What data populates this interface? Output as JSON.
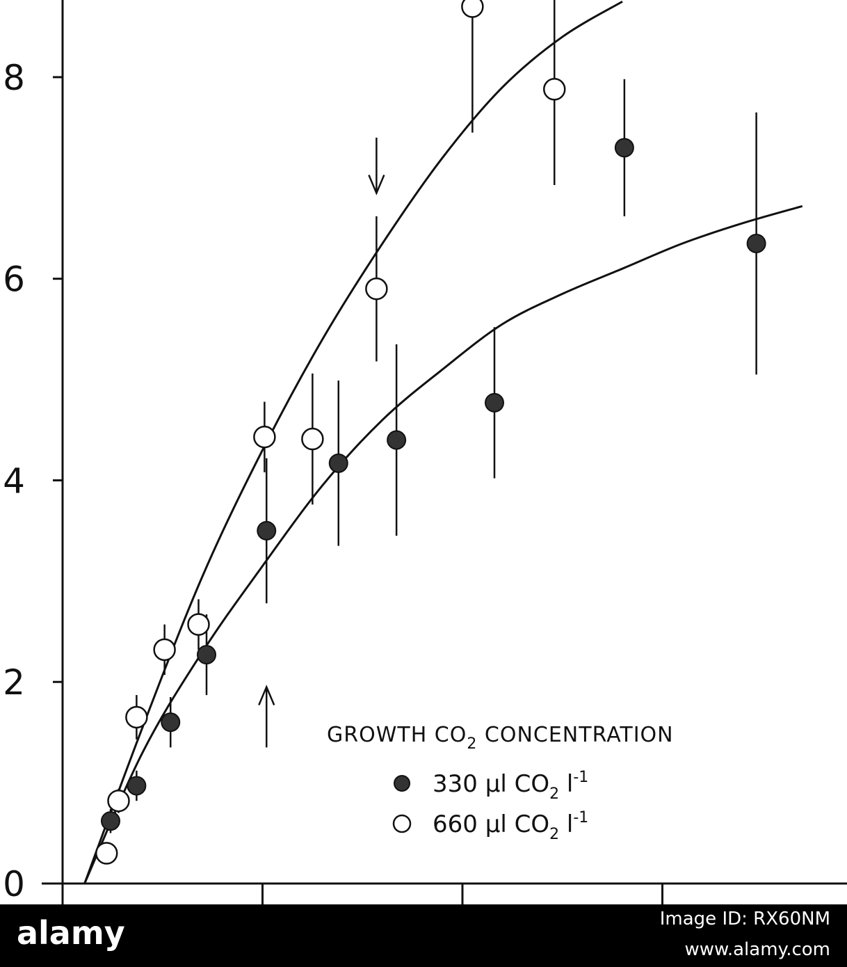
{
  "chart_data": {
    "type": "scatter",
    "title": "",
    "xlabel": "",
    "ylabel": "",
    "ylim": [
      0,
      8.8
    ],
    "xlim": [
      0,
      2000
    ],
    "y_ticks": [
      "0",
      "2",
      "4",
      "6",
      "8"
    ],
    "y_tick_values": [
      0,
      2,
      4,
      6,
      8
    ],
    "x_tick_values": [
      500,
      1000,
      1500,
      2000
    ],
    "legend": {
      "title": "GROWTH CO",
      "title_sub": "2",
      "title_rest": " CONCENTRATION",
      "placement": "lower-right",
      "entries": [
        {
          "marker": "filled",
          "text": "330 μl CO",
          "sub": "2",
          "rest": " l",
          "sup": "-1"
        },
        {
          "marker": "open",
          "text": "660 μl CO",
          "sub": "2",
          "rest": " l",
          "sup": "-1"
        }
      ]
    },
    "series": [
      {
        "marker": "filled",
        "points": [
          {
            "x": 120,
            "y": 0.62,
            "err": 0.12
          },
          {
            "x": 185,
            "y": 0.97,
            "err": 0.15
          },
          {
            "x": 270,
            "y": 1.6,
            "err": 0.25
          },
          {
            "x": 360,
            "y": 2.27,
            "err": 0.4
          },
          {
            "x": 510,
            "y": 3.5,
            "err": 0.72
          },
          {
            "x": 690,
            "y": 4.17,
            "err": 0.82
          },
          {
            "x": 835,
            "y": 4.4,
            "err": 0.95
          },
          {
            "x": 1080,
            "y": 4.77,
            "err": 0.75
          },
          {
            "x": 1405,
            "y": 7.3,
            "err": 0.68
          },
          {
            "x": 1735,
            "y": 6.35,
            "err": 1.3
          }
        ]
      },
      {
        "marker": "open",
        "points": [
          {
            "x": 110,
            "y": 0.3,
            "err": 0
          },
          {
            "x": 140,
            "y": 0.82,
            "err": 0.12
          },
          {
            "x": 185,
            "y": 1.65,
            "err": 0.22
          },
          {
            "x": 255,
            "y": 2.32,
            "err": 0.25
          },
          {
            "x": 340,
            "y": 2.57,
            "err": 0.25
          },
          {
            "x": 505,
            "y": 4.43,
            "err": 0.35
          },
          {
            "x": 625,
            "y": 4.41,
            "err": 0.65
          },
          {
            "x": 785,
            "y": 5.9,
            "err": 0.72
          },
          {
            "x": 1025,
            "y": 8.7,
            "err": 1.25
          },
          {
            "x": 1230,
            "y": 7.88,
            "err": 0.95
          }
        ]
      }
    ],
    "fit_curves": [
      {
        "for": "open",
        "x": [
          55,
          200,
          350,
          500,
          650,
          800,
          950,
          1100,
          1250,
          1400
        ],
        "y": [
          0,
          1.55,
          3.05,
          4.3,
          5.4,
          6.35,
          7.2,
          7.9,
          8.4,
          8.75
        ]
      },
      {
        "for": "filled",
        "x": [
          55,
          200,
          350,
          500,
          650,
          800,
          950,
          1100,
          1250,
          1400,
          1550,
          1700,
          1850
        ],
        "y": [
          0,
          1.3,
          2.3,
          3.15,
          3.95,
          4.6,
          5.1,
          5.55,
          5.85,
          6.1,
          6.35,
          6.55,
          6.72
        ]
      }
    ],
    "arrows": [
      {
        "x": 785,
        "y_from": 7.4,
        "y_to": 6.85,
        "direction": "down"
      },
      {
        "x": 510,
        "y_from": 1.35,
        "y_to": 1.95,
        "direction": "up"
      }
    ]
  },
  "footer": {
    "logo": "alamy",
    "image_id": "Image ID: RX60NM",
    "url": "www.alamy.com"
  }
}
